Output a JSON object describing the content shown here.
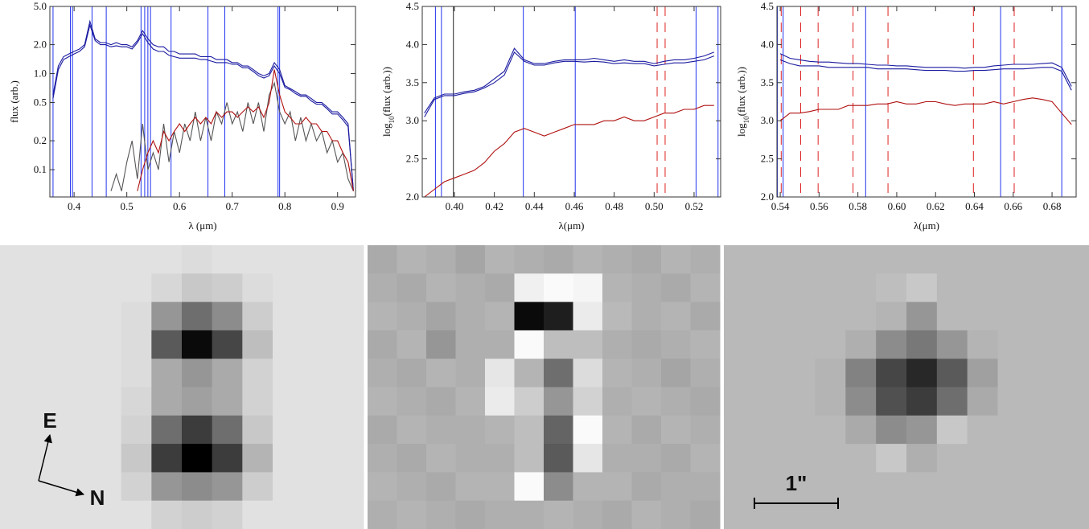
{
  "chart_data": [
    {
      "type": "line",
      "xlabel": "λ (μm)",
      "ylabel": "flux (arb.)",
      "log_y": true,
      "xlim": [
        0.354,
        0.934
      ],
      "ylim": [
        0.052,
        5
      ],
      "xticks": [
        0.4,
        0.5,
        0.6,
        0.7,
        0.8,
        0.9
      ],
      "yticks": [
        0.1,
        0.2,
        0.5,
        {
          "value": 1,
          "label": "1.0"
        },
        {
          "value": 2,
          "label": "2.0"
        },
        {
          "value": 5,
          "label": "5.0"
        }
      ],
      "vlines": [
        {
          "color": "#2233ee",
          "dashed": false,
          "x": [
            0.36,
            0.393,
            0.397,
            0.434,
            0.461,
            0.527,
            0.534,
            0.54,
            0.545,
            0.584,
            0.654,
            0.686,
            0.787,
            0.79
          ]
        }
      ],
      "x": [
        0.36,
        0.37,
        0.38,
        0.39,
        0.4,
        0.41,
        0.42,
        0.43,
        0.44,
        0.45,
        0.46,
        0.47,
        0.48,
        0.49,
        0.5,
        0.51,
        0.52,
        0.53,
        0.54,
        0.55,
        0.56,
        0.57,
        0.58,
        0.59,
        0.6,
        0.61,
        0.62,
        0.63,
        0.64,
        0.65,
        0.66,
        0.67,
        0.68,
        0.69,
        0.7,
        0.71,
        0.72,
        0.73,
        0.74,
        0.75,
        0.76,
        0.77,
        0.78,
        0.79,
        0.8,
        0.81,
        0.82,
        0.83,
        0.84,
        0.85,
        0.86,
        0.87,
        0.88,
        0.89,
        0.9,
        0.91,
        0.92,
        0.93
      ],
      "series": [
        {
          "color": "#555555",
          "values": [
            null,
            null,
            null,
            null,
            null,
            null,
            null,
            null,
            null,
            null,
            null,
            0.06,
            0.09,
            0.06,
            0.12,
            0.2,
            0.08,
            0.3,
            0.1,
            0.15,
            0.1,
            0.3,
            0.12,
            0.25,
            0.15,
            0.3,
            0.2,
            0.4,
            0.2,
            0.35,
            0.2,
            0.4,
            0.3,
            0.5,
            0.3,
            0.4,
            0.25,
            0.5,
            0.3,
            0.5,
            0.25,
            0.6,
            0.8,
            0.4,
            0.3,
            0.4,
            0.2,
            0.35,
            0.2,
            0.3,
            0.2,
            0.25,
            0.15,
            0.2,
            0.12,
            0.15,
            0.08,
            0.06
          ]
        },
        {
          "color": "#1a1aa0",
          "values": [
            0.6,
            1.2,
            1.5,
            1.6,
            1.7,
            1.8,
            2.0,
            3.5,
            2.3,
            2.1,
            2.1,
            2.0,
            2.1,
            2.0,
            2.0,
            1.9,
            2.2,
            2.8,
            2.3,
            2.0,
            1.9,
            1.9,
            1.7,
            1.7,
            1.6,
            1.6,
            1.6,
            1.6,
            1.5,
            1.5,
            1.5,
            1.4,
            1.4,
            1.4,
            1.3,
            1.3,
            1.2,
            1.2,
            1.1,
            1.0,
            0.95,
            1.0,
            1.3,
            1.1,
            0.75,
            0.7,
            0.65,
            0.6,
            0.6,
            0.55,
            0.5,
            0.5,
            0.45,
            0.4,
            0.4,
            0.35,
            0.3,
            0.06
          ]
        },
        {
          "color": "#1a1aa0",
          "values": [
            0.55,
            1.1,
            1.4,
            1.5,
            1.6,
            1.7,
            1.9,
            3.2,
            2.2,
            2.0,
            2.0,
            1.9,
            1.95,
            1.9,
            1.9,
            1.8,
            2.1,
            2.6,
            2.1,
            1.8,
            1.7,
            1.7,
            1.55,
            1.5,
            1.45,
            1.45,
            1.45,
            1.45,
            1.4,
            1.4,
            1.35,
            1.3,
            1.3,
            1.3,
            1.25,
            1.25,
            1.15,
            1.15,
            1.05,
            0.95,
            0.9,
            0.95,
            1.2,
            1.0,
            0.72,
            0.68,
            0.62,
            0.58,
            0.58,
            0.52,
            0.48,
            0.48,
            0.43,
            0.38,
            0.38,
            0.33,
            0.28,
            0.06
          ]
        },
        {
          "color": "#b01010",
          "values": [
            null,
            null,
            null,
            null,
            null,
            null,
            null,
            null,
            null,
            null,
            null,
            null,
            null,
            null,
            null,
            null,
            0.06,
            0.1,
            0.15,
            0.2,
            0.15,
            0.25,
            0.2,
            0.25,
            0.3,
            0.25,
            0.3,
            0.35,
            0.3,
            0.35,
            0.3,
            0.4,
            0.35,
            0.4,
            0.4,
            0.35,
            0.4,
            0.45,
            0.4,
            0.45,
            0.35,
            0.5,
            1.1,
            0.6,
            0.4,
            0.35,
            0.3,
            0.3,
            0.35,
            0.3,
            0.3,
            0.25,
            0.25,
            0.2,
            0.2,
            0.15,
            0.12,
            0.06
          ]
        }
      ]
    },
    {
      "type": "line",
      "xlabel": "λ(μm)",
      "ylabel": [
        "log",
        "10",
        "(flux (arb.))"
      ],
      "log_y": false,
      "xlim": [
        0.3839,
        0.5333
      ],
      "ylim": [
        2.0,
        4.5
      ],
      "xticks": [
        {
          "value": 0.4,
          "label": "0.40"
        },
        0.42,
        0.44,
        0.46,
        0.48,
        {
          "value": 0.5,
          "label": "0.50"
        },
        0.52
      ],
      "yticks": [
        {
          "value": 2,
          "label": "2.0"
        },
        2.5,
        {
          "value": 3,
          "label": "3.0"
        },
        3.5,
        {
          "value": 4,
          "label": "4.0"
        },
        4.5
      ],
      "vlines": [
        {
          "color": "#2233ee",
          "dashed": false,
          "x": [
            0.3905,
            0.3935,
            0.4345,
            0.4605,
            0.521,
            0.532
          ]
        },
        {
          "color": "#222222",
          "dashed": false,
          "x": [
            0.3995
          ]
        },
        {
          "color": "#dd2222",
          "dashed": true,
          "x": [
            0.5015,
            0.5055
          ]
        }
      ],
      "x": [
        0.385,
        0.39,
        0.395,
        0.4,
        0.405,
        0.41,
        0.415,
        0.42,
        0.425,
        0.43,
        0.435,
        0.44,
        0.445,
        0.45,
        0.455,
        0.46,
        0.465,
        0.47,
        0.475,
        0.48,
        0.485,
        0.49,
        0.495,
        0.5,
        0.505,
        0.51,
        0.515,
        0.52,
        0.525,
        0.53
      ],
      "series": [
        {
          "color": "#1a1aa0",
          "values": [
            3.1,
            3.3,
            3.35,
            3.35,
            3.38,
            3.4,
            3.45,
            3.55,
            3.65,
            3.95,
            3.8,
            3.75,
            3.75,
            3.78,
            3.8,
            3.8,
            3.8,
            3.82,
            3.8,
            3.78,
            3.8,
            3.78,
            3.78,
            3.75,
            3.78,
            3.8,
            3.8,
            3.82,
            3.85,
            3.9
          ]
        },
        {
          "color": "#1a1aa0",
          "values": [
            3.05,
            3.28,
            3.33,
            3.33,
            3.36,
            3.38,
            3.43,
            3.5,
            3.6,
            3.9,
            3.78,
            3.73,
            3.73,
            3.76,
            3.78,
            3.78,
            3.77,
            3.78,
            3.77,
            3.75,
            3.76,
            3.75,
            3.75,
            3.72,
            3.74,
            3.76,
            3.76,
            3.78,
            3.8,
            3.85
          ]
        },
        {
          "color": "#b01010",
          "values": [
            2.0,
            2.1,
            2.2,
            2.25,
            2.3,
            2.35,
            2.45,
            2.6,
            2.7,
            2.85,
            2.9,
            2.85,
            2.8,
            2.85,
            2.9,
            2.95,
            2.95,
            2.95,
            3.0,
            3.0,
            3.05,
            3.0,
            3.0,
            3.05,
            3.1,
            3.1,
            3.15,
            3.15,
            3.2,
            3.2
          ]
        }
      ]
    },
    {
      "type": "line",
      "xlabel": "λ(μm)",
      "ylabel": [
        "log",
        "10",
        "(flux (arb.))"
      ],
      "log_y": false,
      "xlim": [
        0.5383,
        0.6924
      ],
      "ylim": [
        2.0,
        4.5
      ],
      "xticks": [
        0.54,
        0.56,
        0.58,
        {
          "value": 0.6,
          "label": "0.60"
        },
        0.62,
        0.64,
        0.66,
        0.68
      ],
      "yticks": [
        {
          "value": 2,
          "label": "2.0"
        },
        2.5,
        {
          "value": 3,
          "label": "3.0"
        },
        3.5,
        {
          "value": 4,
          "label": "4.0"
        },
        4.5
      ],
      "vlines": [
        {
          "color": "#2233ee",
          "dashed": false,
          "x": [
            0.5385,
            0.5415,
            0.584,
            0.6535,
            0.685
          ]
        },
        {
          "color": "#dd2222",
          "dashed": true,
          "x": [
            0.5405,
            0.5505,
            0.5595,
            0.5775,
            0.5955,
            0.6395,
            0.6605
          ]
        }
      ],
      "x": [
        0.54,
        0.545,
        0.55,
        0.555,
        0.56,
        0.565,
        0.57,
        0.575,
        0.58,
        0.585,
        0.59,
        0.595,
        0.6,
        0.605,
        0.61,
        0.615,
        0.62,
        0.625,
        0.63,
        0.635,
        0.64,
        0.645,
        0.65,
        0.655,
        0.66,
        0.665,
        0.67,
        0.675,
        0.68,
        0.685,
        0.69
      ],
      "series": [
        {
          "color": "#1a1aa0",
          "values": [
            3.88,
            3.82,
            3.8,
            3.78,
            3.77,
            3.77,
            3.76,
            3.75,
            3.75,
            3.74,
            3.73,
            3.73,
            3.72,
            3.72,
            3.71,
            3.7,
            3.7,
            3.7,
            3.7,
            3.69,
            3.7,
            3.7,
            3.72,
            3.73,
            3.74,
            3.74,
            3.74,
            3.75,
            3.76,
            3.7,
            3.45
          ]
        },
        {
          "color": "#1a1aa0",
          "values": [
            3.8,
            3.75,
            3.72,
            3.72,
            3.72,
            3.7,
            3.7,
            3.7,
            3.7,
            3.7,
            3.68,
            3.68,
            3.68,
            3.68,
            3.67,
            3.66,
            3.66,
            3.66,
            3.65,
            3.65,
            3.66,
            3.66,
            3.67,
            3.68,
            3.68,
            3.68,
            3.69,
            3.7,
            3.7,
            3.65,
            3.4
          ]
        },
        {
          "color": "#b01010",
          "values": [
            3.0,
            3.1,
            3.1,
            3.12,
            3.15,
            3.15,
            3.15,
            3.2,
            3.2,
            3.2,
            3.22,
            3.22,
            3.25,
            3.22,
            3.22,
            3.25,
            3.25,
            3.22,
            3.2,
            3.22,
            3.22,
            3.22,
            3.25,
            3.22,
            3.25,
            3.28,
            3.3,
            3.28,
            3.25,
            3.1,
            2.95
          ]
        }
      ]
    },
    {
      "type": "image",
      "annotations": [
        "E",
        "N"
      ],
      "pixels": [
        [
          225,
          225,
          225,
          225,
          225,
          225,
          220,
          225,
          225,
          225,
          225,
          225
        ],
        [
          225,
          225,
          225,
          225,
          225,
          215,
          200,
          205,
          220,
          225,
          225,
          225
        ],
        [
          225,
          225,
          225,
          225,
          220,
          150,
          110,
          140,
          205,
          225,
          225,
          225
        ],
        [
          225,
          225,
          225,
          225,
          220,
          90,
          10,
          70,
          190,
          225,
          225,
          225
        ],
        [
          225,
          225,
          225,
          225,
          220,
          170,
          150,
          170,
          210,
          225,
          225,
          225
        ],
        [
          225,
          225,
          225,
          225,
          215,
          170,
          160,
          170,
          210,
          225,
          225,
          225
        ],
        [
          225,
          225,
          225,
          225,
          210,
          110,
          60,
          110,
          200,
          225,
          225,
          225
        ],
        [
          225,
          225,
          225,
          225,
          200,
          60,
          0,
          60,
          180,
          225,
          225,
          225
        ],
        [
          225,
          225,
          225,
          225,
          210,
          150,
          140,
          150,
          205,
          225,
          225,
          225
        ],
        [
          225,
          225,
          225,
          225,
          225,
          210,
          205,
          210,
          225,
          225,
          225,
          225
        ]
      ]
    },
    {
      "type": "image",
      "pixels": [
        [
          170,
          180,
          175,
          165,
          180,
          175,
          170,
          180,
          175,
          170,
          180,
          175
        ],
        [
          175,
          170,
          180,
          175,
          170,
          240,
          250,
          245,
          180,
          175,
          170,
          180
        ],
        [
          180,
          175,
          165,
          175,
          180,
          10,
          30,
          235,
          185,
          175,
          180,
          170
        ],
        [
          170,
          180,
          150,
          175,
          175,
          250,
          190,
          190,
          175,
          170,
          175,
          180
        ],
        [
          175,
          170,
          180,
          175,
          230,
          180,
          110,
          220,
          180,
          175,
          165,
          175
        ],
        [
          180,
          175,
          170,
          180,
          235,
          205,
          150,
          210,
          175,
          180,
          175,
          170
        ],
        [
          170,
          180,
          175,
          175,
          180,
          190,
          100,
          250,
          180,
          170,
          180,
          175
        ],
        [
          175,
          170,
          180,
          175,
          175,
          190,
          90,
          230,
          175,
          175,
          170,
          180
        ],
        [
          180,
          175,
          170,
          180,
          180,
          250,
          140,
          180,
          180,
          170,
          175,
          175
        ],
        [
          175,
          180,
          175,
          170,
          175,
          175,
          180,
          175,
          170,
          180,
          175,
          170
        ]
      ]
    },
    {
      "type": "image",
      "annotations": [
        "1\""
      ],
      "pixels": [
        [
          185,
          185,
          185,
          185,
          185,
          185,
          185,
          185,
          185,
          185,
          185,
          185
        ],
        [
          185,
          185,
          185,
          185,
          185,
          190,
          200,
          185,
          185,
          185,
          185,
          185
        ],
        [
          185,
          185,
          185,
          185,
          185,
          180,
          150,
          185,
          185,
          185,
          185,
          185
        ],
        [
          185,
          185,
          185,
          185,
          175,
          140,
          120,
          150,
          180,
          185,
          185,
          185
        ],
        [
          185,
          185,
          185,
          180,
          130,
          70,
          40,
          90,
          160,
          185,
          185,
          185
        ],
        [
          185,
          185,
          185,
          180,
          140,
          80,
          60,
          110,
          170,
          185,
          185,
          185
        ],
        [
          185,
          185,
          185,
          185,
          170,
          140,
          150,
          200,
          185,
          185,
          185,
          185
        ],
        [
          185,
          185,
          185,
          185,
          185,
          200,
          175,
          185,
          185,
          185,
          185,
          185
        ],
        [
          185,
          185,
          185,
          185,
          185,
          185,
          185,
          185,
          185,
          185,
          185,
          185
        ],
        [
          185,
          185,
          185,
          185,
          185,
          185,
          185,
          185,
          185,
          185,
          185,
          185
        ]
      ]
    }
  ]
}
